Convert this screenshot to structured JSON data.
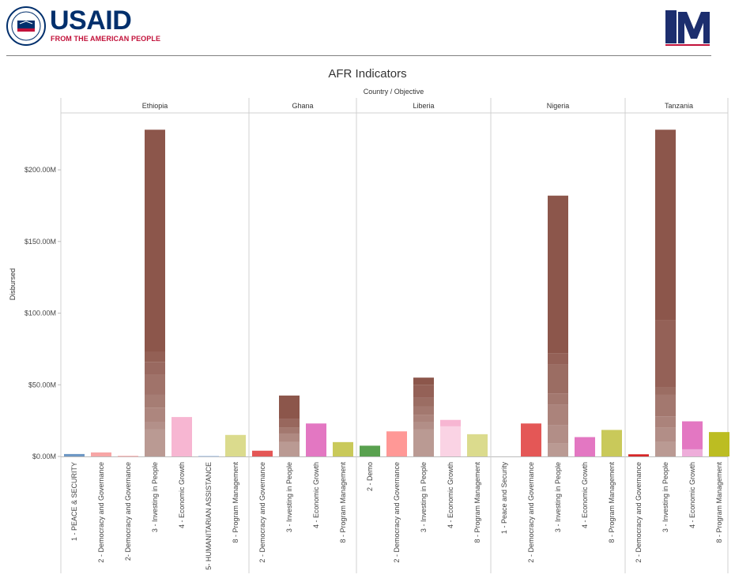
{
  "header": {
    "usaid_wordmark": "USAID",
    "usaid_tagline": "FROM THE AMERICAN PEOPLE",
    "seal_name": "usaid-seal",
    "partner_logo_name": "one-m-logo"
  },
  "chart_data": {
    "type": "bar",
    "title": "AFR Indicators",
    "column_header": "Country  /  Objective",
    "ylabel": "Disbursed",
    "ylim": [
      0,
      232
    ],
    "yticks": [
      {
        "value": 0,
        "label": "$0.00M"
      },
      {
        "value": 50,
        "label": "$50.00M"
      },
      {
        "value": 100,
        "label": "$100.00M"
      },
      {
        "value": 150,
        "label": "$150.00M"
      },
      {
        "value": 200,
        "label": "$200.00M"
      }
    ],
    "panels": [
      {
        "country": "Ethiopia",
        "bars": [
          {
            "label": "1 - PEACE & SECURITY",
            "value": 1.7,
            "color": "#6e98c5"
          },
          {
            "label": "2 - Democracy and Governance",
            "value": 2.8,
            "color": "#f7a6a6"
          },
          {
            "label": "2- Democracy and Governance",
            "value": 0.4,
            "color": "#f7a6a6"
          },
          {
            "label": "3 - Investing in People",
            "value": 228,
            "color": "#8c564b",
            "segments": [
              19,
              5,
              10,
              9,
              14,
              9,
              7,
              155
            ]
          },
          {
            "label": "4 - Economic Growth",
            "value": 27.5,
            "color": "#f7b6d2"
          },
          {
            "label": "5- HUMANITARIAN ASSISTANCE",
            "value": 0.4,
            "color": "#aec7e8"
          },
          {
            "label": "8 - Program Management",
            "value": 15,
            "color": "#dbdb8d"
          }
        ]
      },
      {
        "country": "Ghana",
        "bars": [
          {
            "label": "2 - Democracy and Governance",
            "value": 4,
            "color": "#e45756"
          },
          {
            "label": "3 - Investing in People",
            "value": 42.5,
            "color": "#8c564b",
            "segments": [
              10,
              6,
              4,
              6,
              16.5
            ]
          },
          {
            "label": "4 - Economic Growth",
            "value": 23,
            "color": "#e377c2"
          },
          {
            "label": "8 - Program Management",
            "value": 10,
            "color": "#c9c95a"
          }
        ]
      },
      {
        "country": "Liberia",
        "bars": [
          {
            "label": "2 - Demo",
            "value": 7.5,
            "color": "#59a14f"
          },
          {
            "label": "2 - Democracy and Governance",
            "value": 17.5,
            "color": "#ff9896"
          },
          {
            "label": "3 - Investing in People",
            "value": 55,
            "color": "#8c564b",
            "segments": [
              19,
              5,
              5,
              6,
              6,
              9,
              5
            ]
          },
          {
            "label": "4 - Economic Growth",
            "value": 25.5,
            "color": "#f7b6d2",
            "segments": [
              21,
              4.5
            ]
          },
          {
            "label": "8 - Program Management",
            "value": 15.5,
            "color": "#dbdb8d"
          }
        ]
      },
      {
        "country": "Nigeria",
        "bars": [
          {
            "label": "1 - Peace and Security",
            "value": 0,
            "color": "#6e98c5"
          },
          {
            "label": "2 - Democracy and Governance",
            "value": 23,
            "color": "#e45756"
          },
          {
            "label": "3 - Investing in People",
            "value": 182,
            "color": "#8c564b",
            "segments": [
              9,
              13,
              14,
              8,
              20,
              8,
              110
            ]
          },
          {
            "label": "4 - Economic Growth",
            "value": 13.5,
            "color": "#e377c2"
          },
          {
            "label": "8 - Program Management",
            "value": 18.5,
            "color": "#c9c95a"
          }
        ]
      },
      {
        "country": "Tanzania",
        "bars": [
          {
            "label": "2 - Democracy and Governance",
            "value": 1.5,
            "color": "#d62728"
          },
          {
            "label": "3 - Investing in People",
            "value": 228,
            "color": "#8c564b",
            "segments": [
              10,
              10,
              8,
              15,
              5,
              47,
              133
            ]
          },
          {
            "label": "4 - Economic Growth",
            "value": 24.5,
            "color": "#e377c2",
            "segments": [
              5,
              19.5
            ]
          },
          {
            "label": "8 - Program Management",
            "value": 17,
            "color": "#bcbd22"
          }
        ]
      }
    ]
  }
}
